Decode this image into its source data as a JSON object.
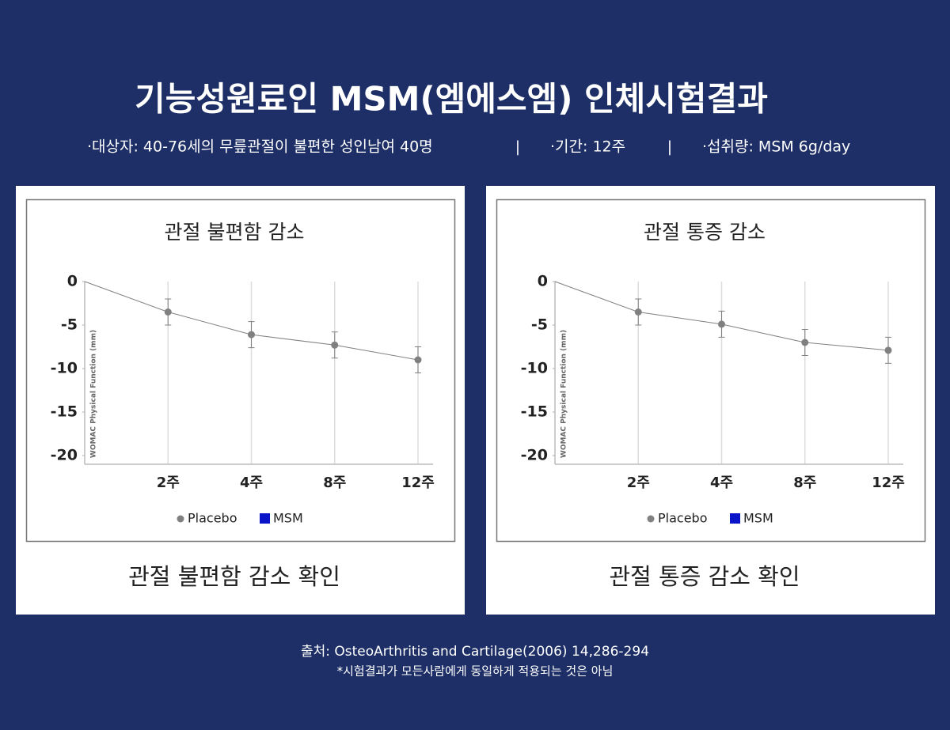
{
  "header": {
    "title": "기능성원료인 MSM(엠에스엠) 인체시험결과",
    "subtitle": [
      "·대상자: 40-76세의 무릎관절이 불편한 성인남여 40명",
      "·기간: 12주",
      "·섭취량: MSM 6g/day"
    ],
    "separator": "|"
  },
  "chart_data": [
    {
      "type": "line",
      "title": "관절 불편함 감소",
      "y_label": "WOMAC Physical Function (mm)",
      "categories": [
        null,
        "2주",
        "4주",
        "8주",
        "12주"
      ],
      "series": [
        {
          "name": "Placebo",
          "color": "#808080",
          "values": [
            0,
            -3.5,
            -6.1,
            -7.3,
            -9.0
          ],
          "errors": [
            null,
            1.5,
            1.5,
            1.5,
            1.5
          ]
        },
        {
          "name": "MSM",
          "color": "#0a14c8",
          "values": [
            null,
            null,
            null,
            null,
            null
          ]
        }
      ],
      "ylim": [
        -21,
        0
      ],
      "yticks": [
        0,
        -5,
        -10,
        -15,
        -20
      ],
      "grid": true,
      "caption": "관절 불편함 감소 확인"
    },
    {
      "type": "line",
      "title": "관절 통증 감소",
      "y_label": "WOMAC Physical Function (mm)",
      "categories": [
        null,
        "2주",
        "4주",
        "8주",
        "12주"
      ],
      "series": [
        {
          "name": "Placebo",
          "color": "#808080",
          "values": [
            0,
            -3.5,
            -4.9,
            -7.0,
            -7.9
          ],
          "errors": [
            null,
            1.5,
            1.5,
            1.5,
            1.5
          ]
        },
        {
          "name": "MSM",
          "color": "#0a14c8",
          "values": [
            null,
            null,
            null,
            null,
            null
          ]
        }
      ],
      "ylim": [
        -21,
        0
      ],
      "yticks": [
        0,
        -5,
        -10,
        -15,
        -20
      ],
      "grid": true,
      "caption": "관절 통증 감소 확인"
    }
  ],
  "footer": {
    "source": "출처: OsteoArthritis and Cartilage(2006) 14,286-294",
    "note": "*시험결과가 모든사람에게 동일하게 적용되는 것은 아님"
  }
}
